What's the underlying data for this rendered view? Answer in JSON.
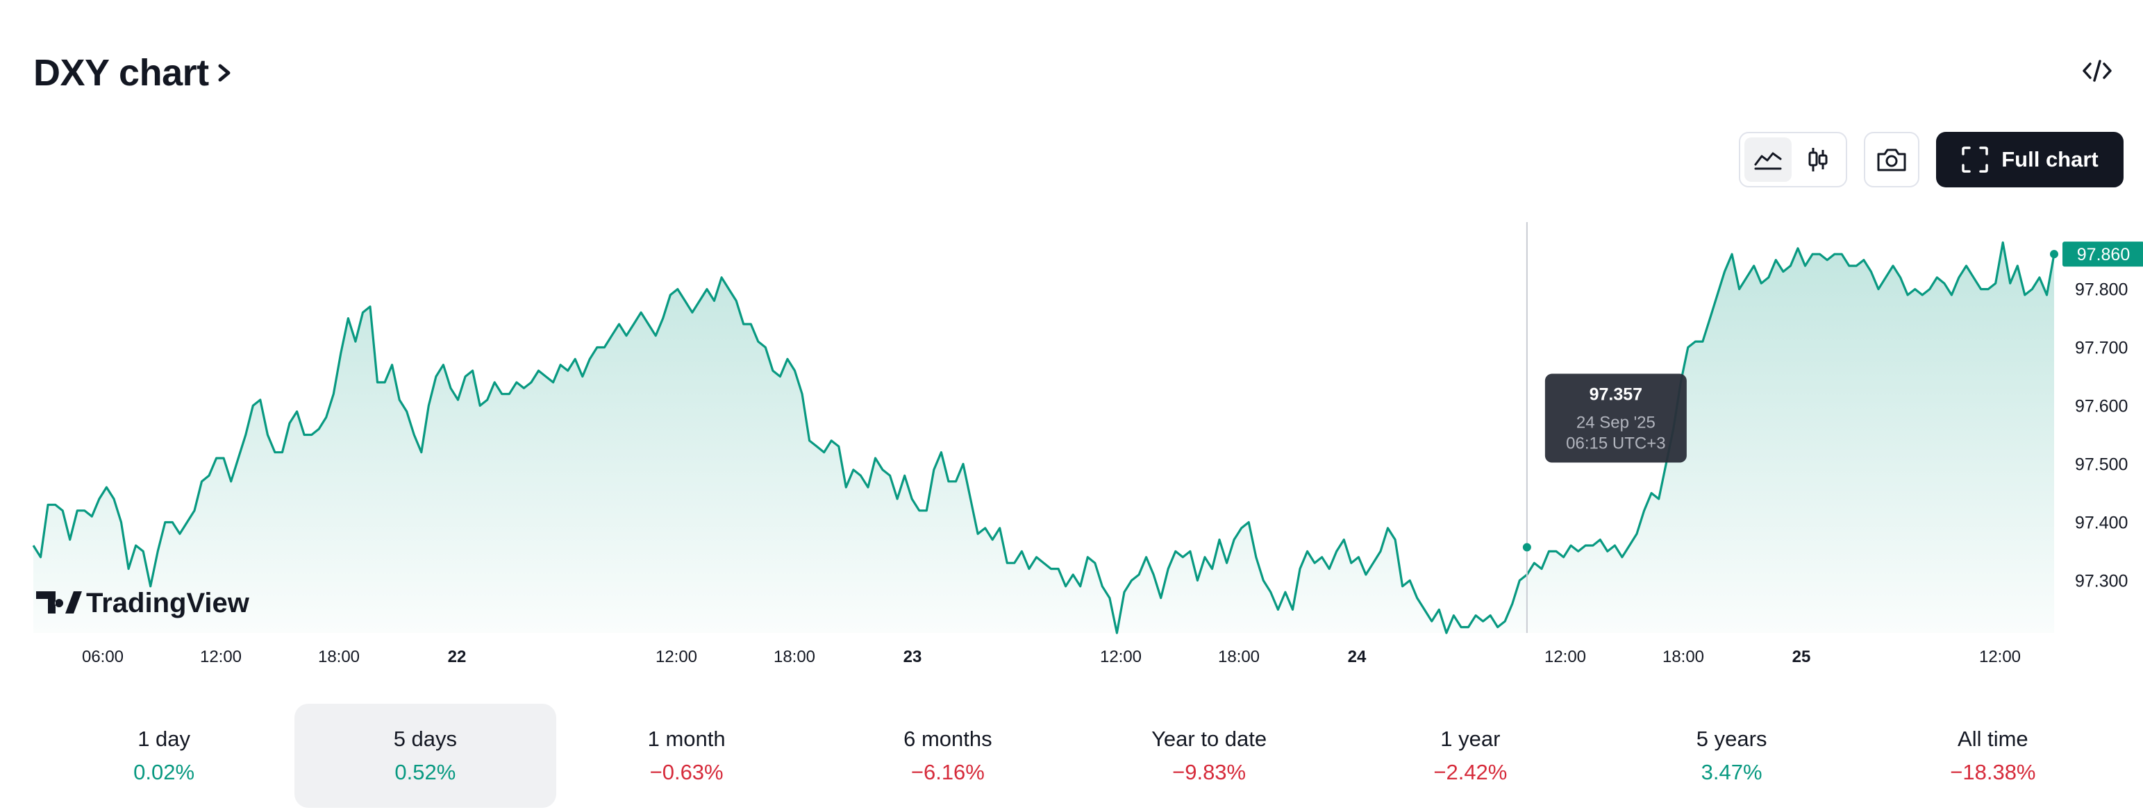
{
  "header": {
    "title": "DXY chart",
    "embed_icon": "code-embed-icon"
  },
  "toolbar": {
    "chart_types": [
      {
        "icon": "area-chart-icon",
        "active": true
      },
      {
        "icon": "candles-chart-icon",
        "active": false
      }
    ],
    "snapshot_icon": "camera-icon",
    "full_chart_icon": "expand-frame-icon",
    "full_chart_label": "Full chart"
  },
  "chart_data": {
    "type": "area",
    "symbol": "DXY",
    "line_color": "#089981",
    "fill_color": "#089981",
    "y_range": [
      97.21,
      97.915
    ],
    "y_ticks": [
      "97.800",
      "97.700",
      "97.600",
      "97.500",
      "97.400",
      "97.300"
    ],
    "last_price": "97.860",
    "x_ticks": [
      {
        "label": "06:00",
        "bold": false
      },
      {
        "label": "12:00",
        "bold": false
      },
      {
        "label": "18:00",
        "bold": false
      },
      {
        "label": "22",
        "bold": true
      },
      {
        "label": "12:00",
        "bold": false
      },
      {
        "label": "18:00",
        "bold": false
      },
      {
        "label": "23",
        "bold": true
      },
      {
        "label": "12:00",
        "bold": false
      },
      {
        "label": "18:00",
        "bold": false
      },
      {
        "label": "24",
        "bold": true
      },
      {
        "label": "12:00",
        "bold": false
      },
      {
        "label": "18:00",
        "bold": false
      },
      {
        "label": "25",
        "bold": true
      },
      {
        "label": "12:00",
        "bold": false
      }
    ],
    "series": [
      {
        "values": [
          97.36,
          97.34,
          97.43,
          97.43,
          97.42,
          97.37,
          97.42,
          97.42,
          97.41,
          97.44,
          97.46,
          97.44,
          97.4,
          97.32,
          97.36,
          97.35,
          97.29,
          97.35,
          97.4,
          97.4,
          97.38,
          97.4,
          97.42,
          97.47,
          97.48,
          97.51,
          97.51,
          97.47,
          97.51,
          97.55,
          97.6,
          97.61,
          97.55,
          97.52,
          97.52,
          97.57,
          97.59,
          97.55,
          97.55,
          97.56,
          97.58,
          97.62,
          97.69,
          97.75,
          97.71,
          97.76,
          97.77,
          97.64,
          97.64,
          97.67,
          97.61,
          97.59,
          97.55,
          97.52,
          97.6,
          97.65,
          97.67,
          97.63,
          97.61,
          97.65,
          97.66,
          97.6,
          97.61,
          97.64,
          97.62,
          97.62,
          97.64,
          97.63,
          97.64,
          97.66,
          97.65,
          97.64,
          97.67,
          97.66,
          97.68,
          97.65,
          97.68,
          97.7,
          97.7,
          97.72,
          97.74,
          97.72,
          97.74,
          97.76,
          97.74,
          97.72,
          97.75,
          97.79,
          97.8,
          97.78,
          97.76,
          97.78,
          97.8,
          97.78,
          97.82,
          97.8,
          97.78,
          97.74,
          97.74,
          97.71,
          97.7,
          97.66,
          97.65,
          97.68,
          97.66,
          97.62,
          97.54,
          97.53,
          97.52,
          97.54,
          97.53,
          97.46,
          97.49,
          97.48,
          97.46,
          97.51,
          97.49,
          97.48,
          97.44,
          97.48,
          97.44,
          97.42,
          97.42,
          97.49,
          97.52,
          97.47,
          97.47,
          97.5,
          97.44,
          97.38,
          97.39,
          97.37,
          97.39,
          97.33,
          97.33,
          97.35,
          97.32,
          97.34,
          97.33,
          97.32,
          97.32,
          97.29,
          97.31,
          97.29,
          97.34,
          97.33,
          97.29,
          97.27,
          97.21,
          97.28,
          97.3,
          97.31,
          97.34,
          97.31,
          97.27,
          97.32,
          97.35,
          97.34,
          97.35,
          97.3,
          97.34,
          97.32,
          97.37,
          97.33,
          97.37,
          97.39,
          97.4,
          97.34,
          97.3,
          97.28,
          97.25,
          97.28,
          97.25,
          97.32,
          97.35,
          97.33,
          97.34,
          97.32,
          97.35,
          97.37,
          97.33,
          97.34,
          97.31,
          97.33,
          97.35,
          97.39,
          97.37,
          97.29,
          97.3,
          97.27,
          97.25,
          97.23,
          97.25,
          97.21,
          97.24,
          97.22,
          97.22,
          97.24,
          97.23,
          97.24,
          97.22,
          97.23,
          97.26,
          97.3,
          97.31,
          97.33,
          97.32,
          97.35,
          97.35,
          97.34,
          97.36,
          97.35,
          97.36,
          97.36,
          97.37,
          97.35,
          97.36,
          97.34,
          97.36,
          97.38,
          97.42,
          97.45,
          97.44,
          97.5,
          97.56,
          97.64,
          97.7,
          97.71,
          97.71,
          97.75,
          97.79,
          97.83,
          97.86,
          97.8,
          97.82,
          97.84,
          97.81,
          97.82,
          97.85,
          97.83,
          97.84,
          97.87,
          97.84,
          97.86,
          97.86,
          97.85,
          97.86,
          97.86,
          97.84,
          97.84,
          97.85,
          97.83,
          97.8,
          97.82,
          97.84,
          97.82,
          97.79,
          97.8,
          97.79,
          97.8,
          97.82,
          97.81,
          97.79,
          97.82,
          97.84,
          97.82,
          97.8,
          97.8,
          97.81,
          97.88,
          97.81,
          97.84,
          97.79,
          97.8,
          97.82,
          97.79,
          97.86
        ]
      }
    ],
    "crosshair": {
      "value": "97.357",
      "date": "24 Sep '25",
      "time": "06:15 UTC+3"
    },
    "watermark": "TradingView"
  },
  "periods": [
    {
      "label": "1 day",
      "value": "0.02%",
      "direction": "up",
      "active": false
    },
    {
      "label": "5 days",
      "value": "0.52%",
      "direction": "up",
      "active": true
    },
    {
      "label": "1 month",
      "value": "−0.63%",
      "direction": "down",
      "active": false
    },
    {
      "label": "6 months",
      "value": "−6.16%",
      "direction": "down",
      "active": false
    },
    {
      "label": "Year to date",
      "value": "−9.83%",
      "direction": "down",
      "active": false
    },
    {
      "label": "1 year",
      "value": "−2.42%",
      "direction": "down",
      "active": false
    },
    {
      "label": "5 years",
      "value": "3.47%",
      "direction": "up",
      "active": false
    },
    {
      "label": "All time",
      "value": "−18.38%",
      "direction": "down",
      "active": false
    }
  ]
}
